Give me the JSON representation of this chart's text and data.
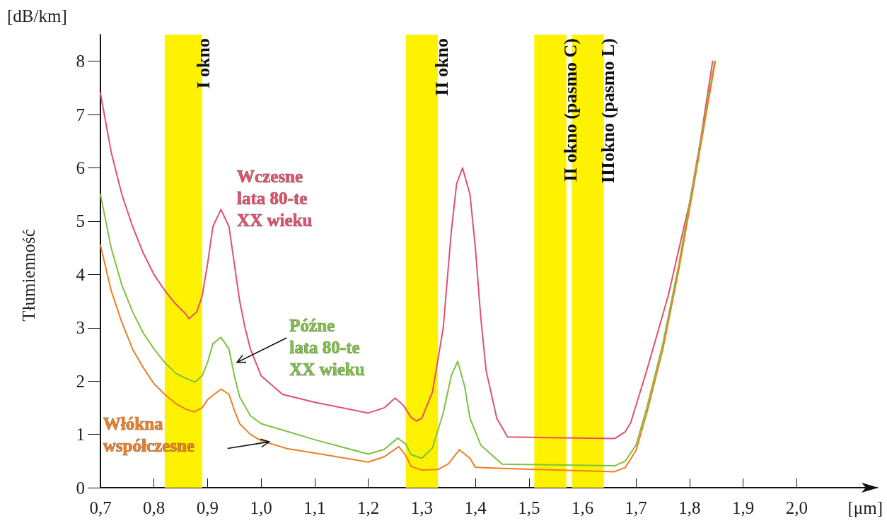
{
  "chart_data": {
    "type": "line",
    "xlabel": "[μm]",
    "ylabel": "Tłumienność",
    "annotations": [
      "[dB/km]"
    ],
    "xlim": [
      0.7,
      2.15
    ],
    "ylim": [
      0,
      8.5
    ],
    "xticks": [
      {
        "value": 0.7,
        "label": "0,7"
      },
      {
        "value": 0.8,
        "label": "0,8"
      },
      {
        "value": 0.9,
        "label": "0,9"
      },
      {
        "value": 1.0,
        "label": "1,0"
      },
      {
        "value": 1.1,
        "label": "1,1"
      },
      {
        "value": 1.2,
        "label": "1,2"
      },
      {
        "value": 1.3,
        "label": "1,3"
      },
      {
        "value": 1.4,
        "label": "1,4"
      },
      {
        "value": 1.5,
        "label": "1,5"
      },
      {
        "value": 1.6,
        "label": "1,6"
      },
      {
        "value": 1.7,
        "label": "1,7"
      },
      {
        "value": 1.8,
        "label": "1,8"
      },
      {
        "value": 1.9,
        "label": "1,9"
      },
      {
        "value": 2.0,
        "label": "2,0"
      }
    ],
    "yticks": [
      0,
      1,
      2,
      3,
      4,
      5,
      6,
      7,
      8
    ],
    "grid": false,
    "legend": false,
    "marker": "none",
    "line_style": "solid",
    "bands": [
      {
        "axis": "x",
        "from": 0.82,
        "to": 0.89,
        "label": "I okno",
        "color": "#fff200"
      },
      {
        "axis": "x",
        "from": 1.27,
        "to": 1.33,
        "label": "II okno",
        "color": "#fff200"
      },
      {
        "axis": "x",
        "from": 1.51,
        "to": 1.57,
        "label": "II okno (pasmo C)",
        "color": "#fff200"
      },
      {
        "axis": "x",
        "from": 1.58,
        "to": 1.64,
        "label": "IIIokno (pasmo L)",
        "color": "#fff200"
      }
    ],
    "series": [
      {
        "name": "Wczesne\nlata 80-te\nXX wieku",
        "color": "#e2506c",
        "x": [
          0.7,
          0.72,
          0.74,
          0.76,
          0.78,
          0.8,
          0.82,
          0.84,
          0.86,
          0.865,
          0.88,
          0.89,
          0.9,
          0.91,
          0.925,
          0.94,
          0.95,
          0.96,
          0.97,
          0.98,
          1.0,
          1.04,
          1.1,
          1.2,
          1.23,
          1.25,
          1.265,
          1.28,
          1.29,
          1.3,
          1.32,
          1.34,
          1.355,
          1.365,
          1.376,
          1.39,
          1.4,
          1.41,
          1.42,
          1.44,
          1.46,
          1.66,
          1.68,
          1.69,
          1.72,
          1.76,
          1.8,
          1.82,
          1.843
        ],
        "values": [
          7.4,
          6.3,
          5.5,
          4.9,
          4.4,
          4.0,
          3.7,
          3.45,
          3.25,
          3.17,
          3.3,
          3.6,
          4.2,
          4.9,
          5.22,
          4.9,
          4.2,
          3.5,
          3.0,
          2.6,
          2.1,
          1.75,
          1.6,
          1.4,
          1.5,
          1.68,
          1.55,
          1.32,
          1.25,
          1.3,
          1.8,
          3.0,
          4.8,
          5.7,
          6.0,
          5.5,
          4.5,
          3.2,
          2.2,
          1.3,
          0.95,
          0.92,
          1.05,
          1.22,
          2.2,
          3.6,
          5.35,
          6.5,
          8.0
        ]
      },
      {
        "name": "Późne\nlata 80-te\nXX wieku",
        "color": "#7dc242",
        "x": [
          0.7,
          0.72,
          0.74,
          0.76,
          0.78,
          0.8,
          0.82,
          0.84,
          0.86,
          0.876,
          0.89,
          0.9,
          0.91,
          0.925,
          0.94,
          0.95,
          0.96,
          0.98,
          1.0,
          1.05,
          1.1,
          1.2,
          1.23,
          1.255,
          1.27,
          1.28,
          1.3,
          1.32,
          1.34,
          1.355,
          1.367,
          1.38,
          1.39,
          1.41,
          1.45,
          1.66,
          1.68,
          1.7,
          1.72,
          1.75,
          1.78,
          1.81,
          1.847
        ],
        "values": [
          5.5,
          4.5,
          3.8,
          3.3,
          2.9,
          2.6,
          2.35,
          2.15,
          2.05,
          1.98,
          2.1,
          2.35,
          2.7,
          2.82,
          2.6,
          2.1,
          1.7,
          1.35,
          1.2,
          1.05,
          0.9,
          0.63,
          0.72,
          0.93,
          0.82,
          0.62,
          0.55,
          0.75,
          1.4,
          2.1,
          2.37,
          1.9,
          1.3,
          0.8,
          0.44,
          0.41,
          0.5,
          0.8,
          1.5,
          2.7,
          4.2,
          5.9,
          8.0
        ]
      },
      {
        "name": "Włókna\nwspółczesne",
        "color": "#ef7d22",
        "x": [
          0.7,
          0.72,
          0.74,
          0.76,
          0.78,
          0.8,
          0.82,
          0.84,
          0.86,
          0.875,
          0.89,
          0.9,
          0.925,
          0.94,
          0.95,
          0.96,
          0.98,
          1.0,
          1.05,
          1.1,
          1.2,
          1.23,
          1.257,
          1.27,
          1.28,
          1.3,
          1.33,
          1.35,
          1.37,
          1.39,
          1.4,
          1.45,
          1.66,
          1.68,
          1.7,
          1.72,
          1.75,
          1.78,
          1.81,
          1.848
        ],
        "values": [
          4.55,
          3.7,
          3.1,
          2.6,
          2.25,
          1.95,
          1.75,
          1.58,
          1.47,
          1.42,
          1.5,
          1.65,
          1.85,
          1.75,
          1.45,
          1.2,
          1.0,
          0.88,
          0.73,
          0.65,
          0.48,
          0.58,
          0.77,
          0.6,
          0.4,
          0.33,
          0.34,
          0.45,
          0.71,
          0.55,
          0.38,
          0.36,
          0.3,
          0.38,
          0.7,
          1.4,
          2.6,
          4.1,
          5.8,
          8.0
        ]
      }
    ]
  }
}
